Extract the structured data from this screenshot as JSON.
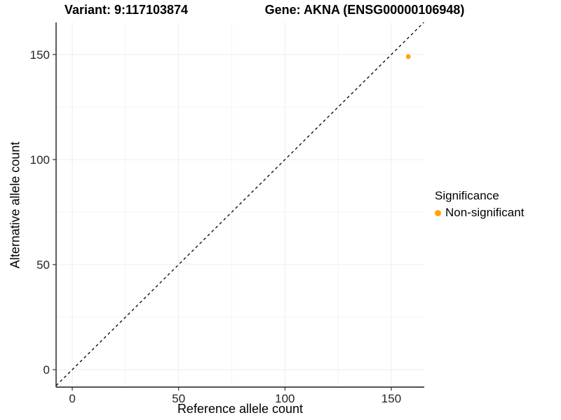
{
  "header": {
    "variant_title": "Variant: 9:117103874",
    "gene_title": "Gene: AKNA (ENSG00000106948)"
  },
  "chart_data": {
    "type": "scatter",
    "title": "",
    "xlabel": "Reference allele count",
    "ylabel": "Alternative allele count",
    "xlim": [
      -7.6,
      165.5
    ],
    "ylim": [
      -8.3,
      165.3
    ],
    "x_ticks": [
      0,
      50,
      100,
      150
    ],
    "y_ticks": [
      0,
      50,
      100,
      150
    ],
    "x_minor_ticks": [
      25,
      75,
      125
    ],
    "y_minor_ticks": [
      25,
      75,
      125
    ],
    "grid": "major and minor, faint grey on white",
    "points": [
      {
        "x": 158,
        "y": 149,
        "series": "Non-significant"
      }
    ],
    "reference_line": {
      "kind": "identity",
      "slope": 1,
      "intercept": 0,
      "style": "dashed",
      "color": "#000000"
    },
    "legend": {
      "title": "Significance",
      "position": "right",
      "items": [
        {
          "label": "Non-significant",
          "color": "#FFA500"
        }
      ]
    }
  },
  "colors": {
    "point": "#FFA500",
    "axis_line": "#1a1a1a",
    "tick_mark": "#333333",
    "tick_text": "#262626",
    "grid_major": "#ececec",
    "grid_minor": "#f4f4f4",
    "dashed_line": "#000000",
    "background": "#ffffff"
  }
}
